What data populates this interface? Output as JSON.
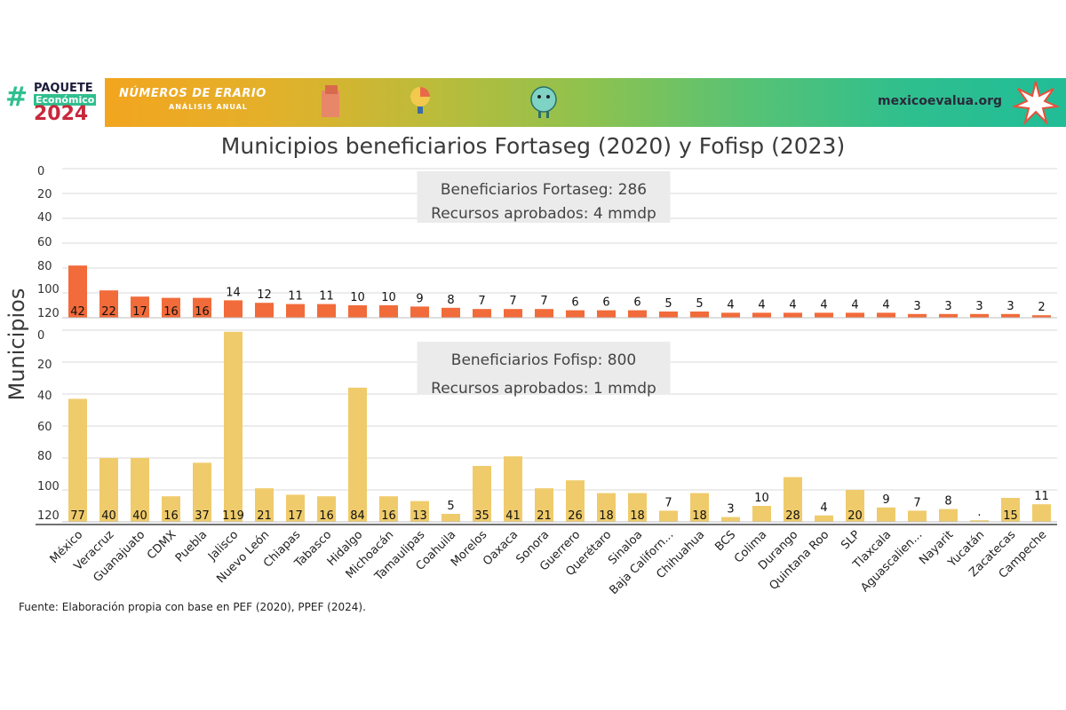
{
  "header": {
    "logo_line1": "PAQUETE",
    "logo_line2": "Económico",
    "logo_line3": "2024",
    "brand_title": "NÚMEROS DE ERARIO",
    "brand_subtitle": "ANÁLISIS ANUAL",
    "site": "mexicoevalua.org",
    "colors": {
      "green": "#2fbf8e",
      "orange": "#f7a21b",
      "red": "#c8283c"
    }
  },
  "chart_data": {
    "type": "bar",
    "title": "Municipios beneficiarios Fortaseg (2020) y Fofisp (2023)",
    "ylabel": "Municipios",
    "categories": [
      "México",
      "Veracruz",
      "Guanajuato",
      "CDMX",
      "Puebla",
      "Jalisco",
      "Nuevo León",
      "Chiapas",
      "Tabasco",
      "Hidalgo",
      "Michoacán",
      "Tamaulipas",
      "Coahuila",
      "Morelos",
      "Oaxaca",
      "Sonora",
      "Guerrero",
      "Querétaro",
      "Sinaloa",
      "Baja Californ...",
      "Chihuahua",
      "BCS",
      "Colima",
      "Durango",
      "Quintana Roo",
      "SLP",
      "Tlaxcala",
      "Aguascalien...",
      "Nayarit",
      "Yucatán",
      "Zacatecas",
      "Campeche"
    ],
    "panels": [
      {
        "name": "Fortaseg",
        "color": "#f26b3a",
        "ylim": [
          0,
          120
        ],
        "yticks": [
          0,
          20,
          40,
          60,
          80,
          100,
          120
        ],
        "annotation": [
          "Beneficiarios Fortaseg: 286",
          "Recursos aprobados: 4 mmdp"
        ],
        "values": [
          42,
          22,
          17,
          16,
          16,
          14,
          12,
          11,
          11,
          10,
          10,
          9,
          8,
          7,
          7,
          7,
          6,
          6,
          6,
          5,
          5,
          4,
          4,
          4,
          4,
          4,
          4,
          3,
          3,
          3,
          3,
          2
        ]
      },
      {
        "name": "Fofisp",
        "color": "#efcb6b",
        "ylim": [
          0,
          120
        ],
        "yticks": [
          0,
          20,
          40,
          60,
          80,
          100,
          120
        ],
        "annotation": [
          "Beneficiarios Fofisp: 800",
          "Recursos aprobados: 1 mmdp"
        ],
        "values": [
          77,
          40,
          40,
          16,
          37,
          119,
          21,
          17,
          16,
          84,
          16,
          13,
          5,
          35,
          41,
          21,
          26,
          18,
          18,
          7,
          18,
          3,
          10,
          28,
          4,
          20,
          9,
          7,
          8,
          1,
          15,
          11
        ],
        "value_labels": [
          "77",
          "40",
          "40",
          "16",
          "37",
          "119",
          "21",
          "17",
          "16",
          "84",
          "16",
          "13",
          "5",
          "35",
          "41",
          "21",
          "26",
          "18",
          "18",
          "7",
          "18",
          "3",
          "10",
          "28",
          "4",
          "20",
          "9",
          "7",
          "8",
          ".",
          "15",
          "11"
        ]
      }
    ],
    "grid": true
  },
  "footer": {
    "source": "Fuente: Elaboración propia con base en PEF (2020), PPEF (2024)."
  }
}
